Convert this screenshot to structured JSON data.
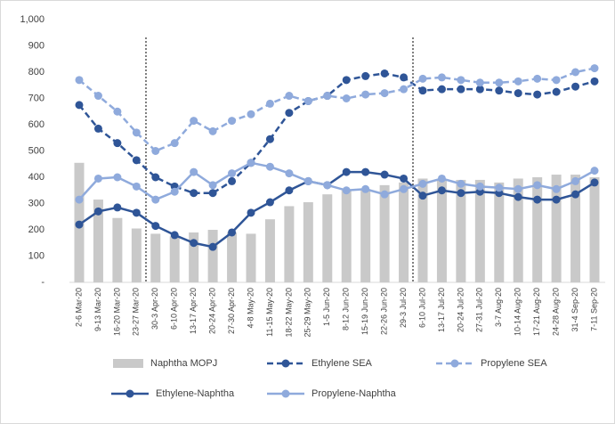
{
  "chart_data": {
    "type": "combo",
    "categories": [
      "2-6 Mar-20",
      "9-13 Mar-20",
      "16-20 Mar-20",
      "23-27 Mar-20",
      "30-3 Apr-20",
      "6-10 Apr-20",
      "13-17 Apr-20",
      "20-24 Apr-20",
      "27-30 Apr-20",
      "4-8 May-20",
      "11-15 May-20",
      "18-22 May-20",
      "25-29 May-20",
      "1-5 Jun-20",
      "8-12 Jun-20",
      "15-19 Jun-20",
      "22-26 Jun-20",
      "29-3 Jul-20",
      "6-10 Jul-20",
      "13-17 Jul-20",
      "20-24 Jul-20",
      "27-31 Jul-20",
      "3-7 Aug-20",
      "10-14 Aug-20",
      "17-21 Aug-20",
      "24-28 Aug-20",
      "31-4 Sep-20",
      "7-11 Sep-20"
    ],
    "series": [
      {
        "name": "Naphtha MOPJ",
        "type": "bar",
        "color": "#c9c9c9",
        "values": [
          455,
          315,
          245,
          205,
          185,
          175,
          190,
          200,
          190,
          185,
          240,
          290,
          305,
          335,
          350,
          355,
          370,
          380,
          395,
          390,
          390,
          390,
          380,
          395,
          400,
          410,
          410,
          400
        ]
      },
      {
        "name": "Ethylene SEA",
        "type": "line",
        "dashed": true,
        "color": "#2f5597",
        "values": [
          675,
          585,
          530,
          465,
          400,
          365,
          340,
          340,
          385,
          455,
          545,
          645,
          690,
          710,
          770,
          785,
          795,
          780,
          730,
          735,
          735,
          735,
          730,
          720,
          715,
          725,
          745,
          765
        ]
      },
      {
        "name": "Propylene SEA",
        "type": "line",
        "dashed": true,
        "color": "#8faadc",
        "values": [
          770,
          710,
          650,
          570,
          500,
          530,
          615,
          575,
          615,
          640,
          680,
          710,
          690,
          710,
          700,
          715,
          720,
          735,
          775,
          780,
          770,
          760,
          760,
          765,
          775,
          770,
          800,
          815
        ]
      },
      {
        "name": "Ethylene-Naphtha",
        "type": "line",
        "dashed": false,
        "color": "#2f5597",
        "values": [
          220,
          270,
          285,
          265,
          215,
          180,
          150,
          135,
          190,
          265,
          305,
          350,
          385,
          370,
          420,
          420,
          410,
          395,
          330,
          350,
          340,
          345,
          340,
          325,
          315,
          315,
          335,
          380
        ]
      },
      {
        "name": "Propylene-Naphtha",
        "type": "line",
        "dashed": false,
        "color": "#8faadc",
        "values": [
          315,
          395,
          400,
          365,
          315,
          345,
          420,
          370,
          415,
          455,
          440,
          415,
          385,
          370,
          350,
          355,
          335,
          355,
          375,
          395,
          375,
          365,
          360,
          355,
          370,
          355,
          385,
          425
        ]
      }
    ],
    "ylim": [
      0,
      1000
    ],
    "yticks": [
      {
        "value": 0,
        "label": "-"
      },
      100,
      200,
      300,
      400,
      500,
      600,
      700,
      800,
      900,
      {
        "value": 1000,
        "label": "1,000"
      }
    ],
    "grid": false
  }
}
